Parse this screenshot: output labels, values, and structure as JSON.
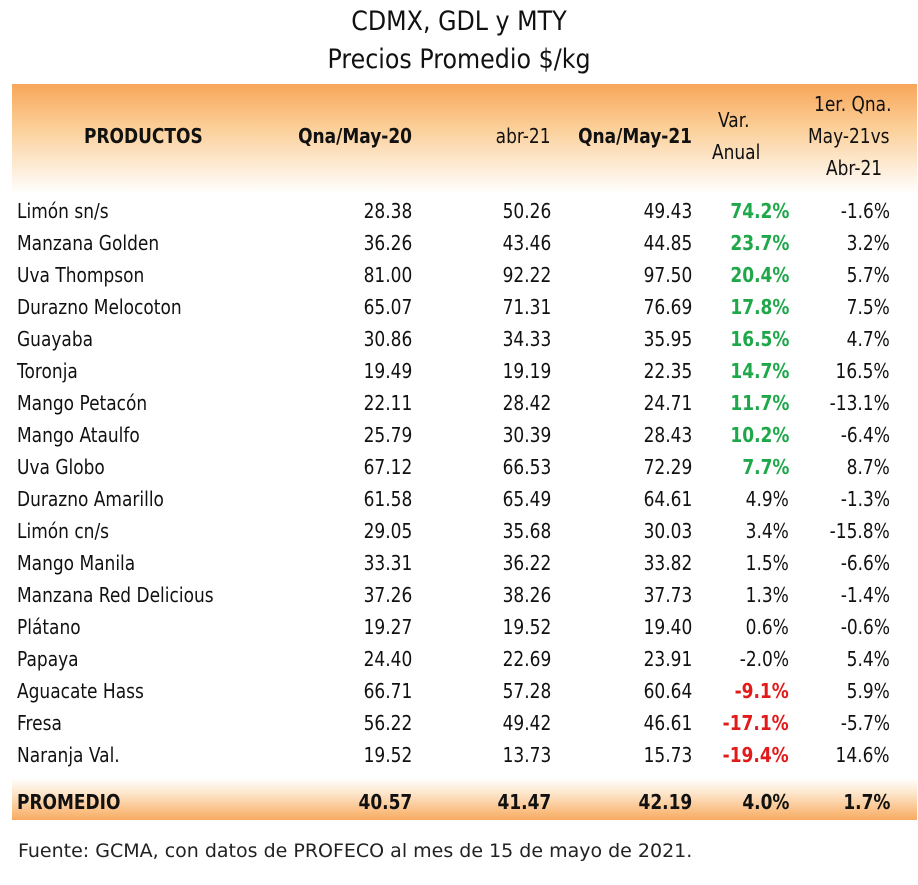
{
  "title_line1": "CDMX, GDL y MTY",
  "title_line2": "Precios Promedio $/kg",
  "headers": {
    "productos": "PRODUCTOS",
    "qna_may20": "Qna/May-20",
    "abr21": "abr-21",
    "qna_may21": "Qna/May-21",
    "var_anual_1": "Var.",
    "var_anual_2": "Anual",
    "qna_1": "1er. Qna.",
    "qna_2": "May-21vs",
    "qna_3": "Abr-21"
  },
  "rows": [
    {
      "name": "Limón sn/s",
      "may20": "28.38",
      "abr21": "50.26",
      "may21": "49.43",
      "var": "74.2%",
      "vs": "-1.6%",
      "tone": "pos"
    },
    {
      "name": "Manzana Golden",
      "may20": "36.26",
      "abr21": "43.46",
      "may21": "44.85",
      "var": "23.7%",
      "vs": "3.2%",
      "tone": "pos"
    },
    {
      "name": "Uva Thompson",
      "may20": "81.00",
      "abr21": "92.22",
      "may21": "97.50",
      "var": "20.4%",
      "vs": "5.7%",
      "tone": "pos"
    },
    {
      "name": "Durazno Melocoton",
      "may20": "65.07",
      "abr21": "71.31",
      "may21": "76.69",
      "var": "17.8%",
      "vs": "7.5%",
      "tone": "pos"
    },
    {
      "name": "Guayaba",
      "may20": "30.86",
      "abr21": "34.33",
      "may21": "35.95",
      "var": "16.5%",
      "vs": "4.7%",
      "tone": "pos"
    },
    {
      "name": "Toronja",
      "may20": "19.49",
      "abr21": "19.19",
      "may21": "22.35",
      "var": "14.7%",
      "vs": "16.5%",
      "tone": "pos"
    },
    {
      "name": "Mango Petacón",
      "may20": "22.11",
      "abr21": "28.42",
      "may21": "24.71",
      "var": "11.7%",
      "vs": "-13.1%",
      "tone": "pos"
    },
    {
      "name": "Mango Ataulfo",
      "may20": "25.79",
      "abr21": "30.39",
      "may21": "28.43",
      "var": "10.2%",
      "vs": "-6.4%",
      "tone": "pos"
    },
    {
      "name": "Uva Globo",
      "may20": "67.12",
      "abr21": "66.53",
      "may21": "72.29",
      "var": "7.7%",
      "vs": "8.7%",
      "tone": "pos"
    },
    {
      "name": "Durazno Amarillo",
      "may20": "61.58",
      "abr21": "65.49",
      "may21": "64.61",
      "var": "4.9%",
      "vs": "-1.3%",
      "tone": ""
    },
    {
      "name": "Limón cn/s",
      "may20": "29.05",
      "abr21": "35.68",
      "may21": "30.03",
      "var": "3.4%",
      "vs": "-15.8%",
      "tone": ""
    },
    {
      "name": "Mango Manila",
      "may20": "33.31",
      "abr21": "36.22",
      "may21": "33.82",
      "var": "1.5%",
      "vs": "-6.6%",
      "tone": ""
    },
    {
      "name": "Manzana Red Delicious",
      "may20": "37.26",
      "abr21": "38.26",
      "may21": "37.73",
      "var": "1.3%",
      "vs": "-1.4%",
      "tone": ""
    },
    {
      "name": "Plátano",
      "may20": "19.27",
      "abr21": "19.52",
      "may21": "19.40",
      "var": "0.6%",
      "vs": "-0.6%",
      "tone": ""
    },
    {
      "name": "Papaya",
      "may20": "24.40",
      "abr21": "22.69",
      "may21": "23.91",
      "var": "-2.0%",
      "vs": "5.4%",
      "tone": ""
    },
    {
      "name": "Aguacate Hass",
      "may20": "66.71",
      "abr21": "57.28",
      "may21": "60.64",
      "var": "-9.1%",
      "vs": "5.9%",
      "tone": "neg"
    },
    {
      "name": "Fresa",
      "may20": "56.22",
      "abr21": "49.42",
      "may21": "46.61",
      "var": "-17.1%",
      "vs": "-5.7%",
      "tone": "neg"
    },
    {
      "name": "Naranja Val.",
      "may20": "19.52",
      "abr21": "13.73",
      "may21": "15.73",
      "var": "-19.4%",
      "vs": "14.6%",
      "tone": "neg"
    }
  ],
  "average": {
    "label": "PROMEDIO",
    "may20": "40.57",
    "abr21": "41.47",
    "may21": "42.19",
    "var": "4.0%",
    "vs": "1.7%"
  },
  "source": "Fuente: GCMA, con datos de PROFECO al mes de 15 de mayo de 2021."
}
